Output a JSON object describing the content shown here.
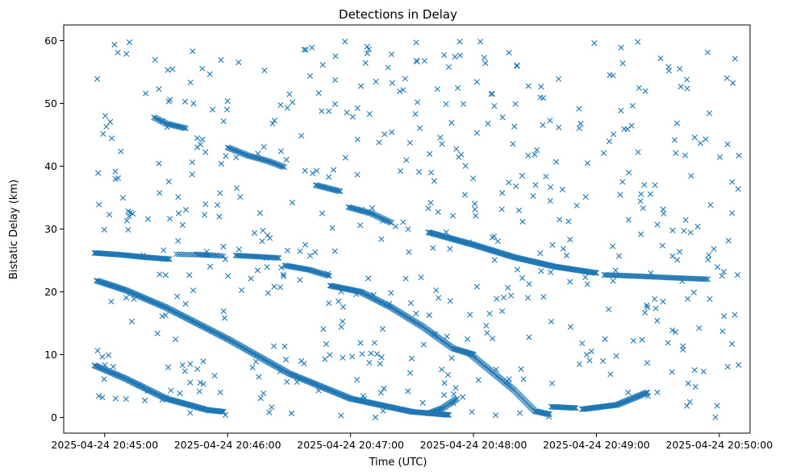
{
  "chart_data": {
    "type": "scatter",
    "title": "Detections in Delay",
    "xlabel": "Time (UTC)",
    "ylabel": "Bistatic Delay (km)",
    "marker": "x",
    "marker_color": "#1f77b4",
    "grid": false,
    "x_start": "2025-04-24 20:44:40",
    "x_end": "2025-04-24 20:50:15",
    "xlim_seconds": [
      -20,
      315
    ],
    "ylim": [
      -2.5,
      62.5
    ],
    "x_ticks": [
      {
        "label": "2025-04-24 20:45:00",
        "value": 0
      },
      {
        "label": "2025-04-24 20:46:00",
        "value": 60
      },
      {
        "label": "2025-04-24 20:47:00",
        "value": 120
      },
      {
        "label": "2025-04-24 20:48:00",
        "value": 180
      },
      {
        "label": "2025-04-24 20:49:00",
        "value": 240
      },
      {
        "label": "2025-04-24 20:50:00",
        "value": 300
      }
    ],
    "y_ticks": [
      0,
      10,
      20,
      30,
      40,
      50,
      60
    ],
    "tracks": [
      {
        "x": [
          -5,
          8,
          20,
          32
        ],
        "y": [
          26.2,
          25.9,
          25.5,
          25.2
        ],
        "step": 0.6
      },
      {
        "x": [
          -4,
          10,
          30,
          60,
          90,
          120,
          150,
          168
        ],
        "y": [
          21.8,
          20.3,
          17.5,
          12.5,
          7.0,
          3.0,
          0.9,
          0.4
        ],
        "step": 0.5
      },
      {
        "x": [
          -5,
          10,
          30,
          50,
          58
        ],
        "y": [
          8.3,
          6.2,
          3.0,
          1.2,
          0.9
        ],
        "step": 0.5
      },
      {
        "x": [
          24,
          30,
          40
        ],
        "y": [
          47.8,
          46.8,
          46.0
        ],
        "step": 0.6
      },
      {
        "x": [
          35,
          45,
          55
        ],
        "y": [
          26.0,
          25.9,
          25.8
        ],
        "step": 1.2
      },
      {
        "x": [
          64,
          75,
          85
        ],
        "y": [
          25.8,
          25.6,
          25.4
        ],
        "step": 0.7
      },
      {
        "x": [
          60,
          70,
          80,
          88
        ],
        "y": [
          43.0,
          41.7,
          40.8,
          39.8
        ],
        "step": 0.6
      },
      {
        "x": [
          88,
          100,
          110
        ],
        "y": [
          24.2,
          23.5,
          22.5
        ],
        "step": 0.6
      },
      {
        "x": [
          110,
          125,
          140,
          155,
          170,
          180
        ],
        "y": [
          21.0,
          20.0,
          17.5,
          14.5,
          11.0,
          10.0
        ],
        "step": 0.5
      },
      {
        "x": [
          178,
          190,
          200,
          210,
          217
        ],
        "y": [
          10.2,
          7.0,
          4.3,
          1.0,
          0.5
        ],
        "step": 0.5
      },
      {
        "x": [
          158,
          165,
          172
        ],
        "y": [
          0.6,
          1.5,
          3.0
        ],
        "step": 0.5
      },
      {
        "x": [
          119,
          130,
          140
        ],
        "y": [
          33.5,
          32.5,
          31.0
        ],
        "step": 0.6
      },
      {
        "x": [
          103,
          115
        ],
        "y": [
          37.0,
          36.0
        ],
        "step": 0.6
      },
      {
        "x": [
          158,
          180,
          200,
          220,
          240
        ],
        "y": [
          29.5,
          27.5,
          25.5,
          24.0,
          23.0
        ],
        "step": 0.5
      },
      {
        "x": [
          233,
          250,
          265
        ],
        "y": [
          1.3,
          2.0,
          4.0
        ],
        "step": 0.5
      },
      {
        "x": [
          218,
          230
        ],
        "y": [
          1.7,
          1.5
        ],
        "step": 0.6
      },
      {
        "x": [
          244,
          260,
          280,
          295
        ],
        "y": [
          22.7,
          22.5,
          22.2,
          22.0
        ],
        "step": 0.8
      },
      {
        "x": [
          45,
          58
        ],
        "y": [
          26.0,
          25.7
        ],
        "step": 1.0
      }
    ],
    "noise": {
      "count": 560,
      "x_range": [
        -5,
        310
      ],
      "y_range": [
        0,
        60
      ],
      "seed": 20250424
    }
  }
}
